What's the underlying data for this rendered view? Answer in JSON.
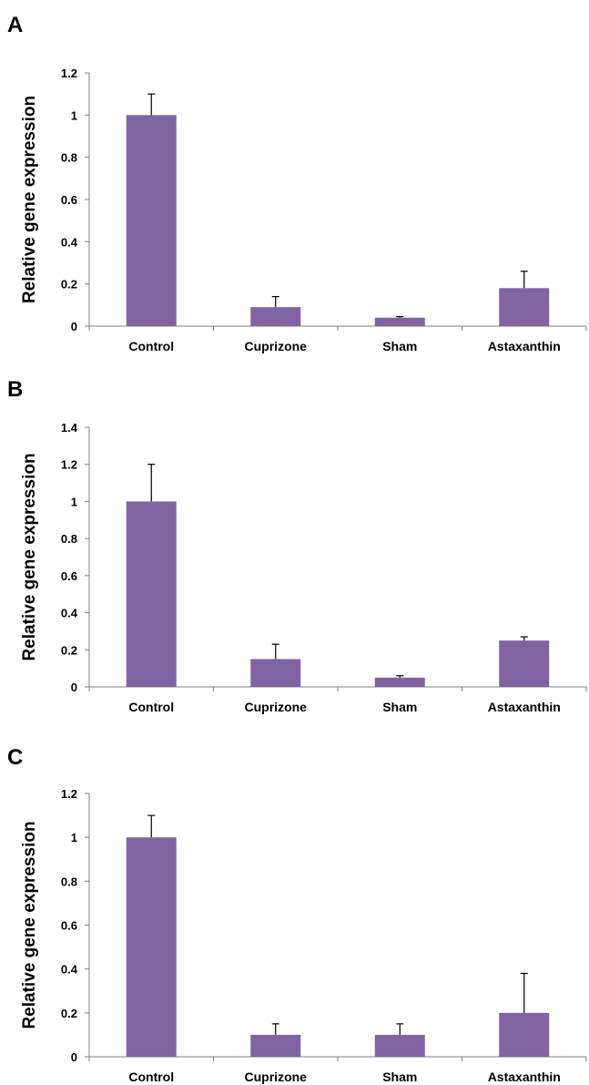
{
  "chart_data": [
    {
      "panel_label": "A",
      "type": "bar",
      "categories": [
        "Control",
        "Cuprizone",
        "Sham",
        "Astaxanthin"
      ],
      "values": [
        1.0,
        0.09,
        0.04,
        0.18
      ],
      "error": [
        0.1,
        0.05,
        0.005,
        0.08
      ],
      "ylabel": "Relative gene expression",
      "ylim": [
        0,
        1.2
      ],
      "yticks": [
        "0",
        "0.2",
        "0.4",
        "0.6",
        "0.8",
        "1",
        "1.2"
      ],
      "bar_color": "#8064a2",
      "grid": false
    },
    {
      "panel_label": "B",
      "type": "bar",
      "categories": [
        "Control",
        "Cuprizone",
        "Sham",
        "Astaxanthin"
      ],
      "values": [
        1.0,
        0.15,
        0.05,
        0.25
      ],
      "error": [
        0.2,
        0.08,
        0.01,
        0.02
      ],
      "ylabel": "Relative gene expression",
      "ylim": [
        0,
        1.4
      ],
      "yticks": [
        "0",
        "0.2",
        "0.4",
        "0.6",
        "0.8",
        "1",
        "1.2",
        "1.4"
      ],
      "bar_color": "#8064a2",
      "grid": false
    },
    {
      "panel_label": "C",
      "type": "bar",
      "categories": [
        "Control",
        "Cuprizone",
        "Sham",
        "Astaxanthin"
      ],
      "values": [
        1.0,
        0.1,
        0.1,
        0.2
      ],
      "error": [
        0.1,
        0.05,
        0.05,
        0.18
      ],
      "ylabel": "Relative gene expression",
      "ylim": [
        0,
        1.2
      ],
      "yticks": [
        "0",
        "0.2",
        "0.4",
        "0.6",
        "0.8",
        "1",
        "1.2"
      ],
      "bar_color": "#8064a2",
      "grid": false
    }
  ]
}
